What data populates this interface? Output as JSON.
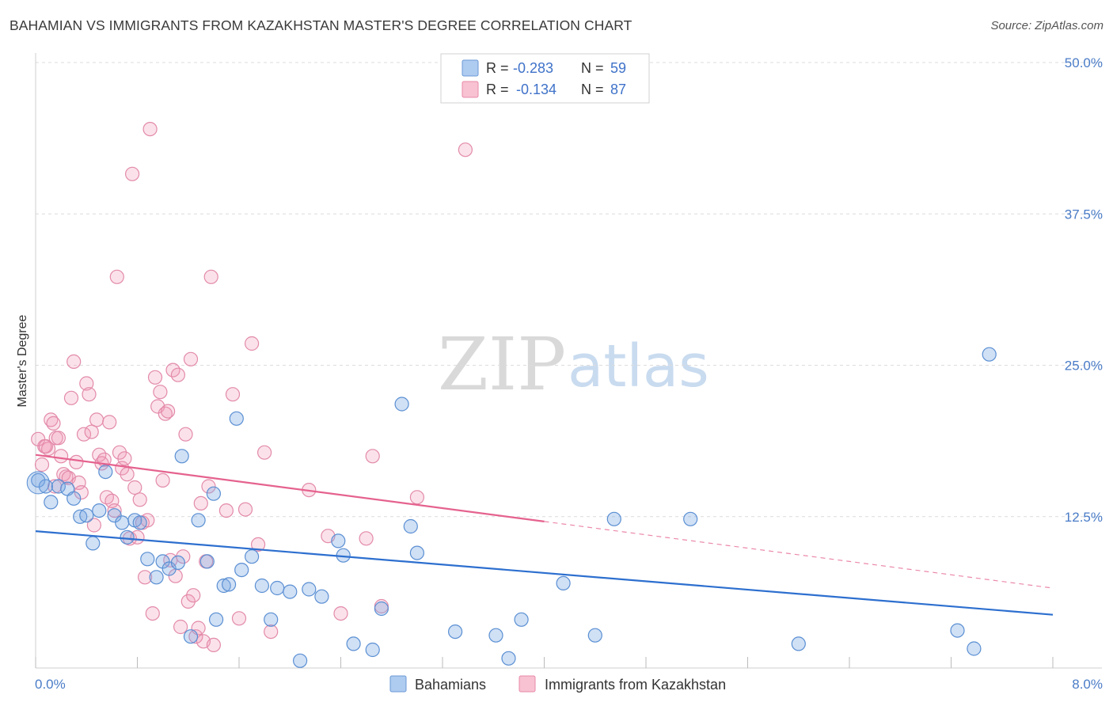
{
  "title": "BAHAMIAN VS IMMIGRANTS FROM KAZAKHSTAN MASTER'S DEGREE CORRELATION CHART",
  "source": "Source: ZipAtlas.com",
  "watermark": {
    "zip": "ZIP",
    "atlas": "atlas"
  },
  "legend": {
    "r_label": "R =",
    "n_label": "N =",
    "entries": [
      {
        "r": "-0.283",
        "n": "59",
        "fill": "#aecbf0",
        "stroke": "#6b9ad6"
      },
      {
        "r": "-0.134",
        "n": "87",
        "fill": "#f8c2d2",
        "stroke": "#e88aa8"
      }
    ]
  },
  "bottom_legend": [
    "Bahamians",
    "Immigrants from Kazakhstan"
  ],
  "colors": {
    "blue_fill": "rgba(120,165,225,0.35)",
    "blue_stroke": "#5a8fd3",
    "blue_line": "#2d6fcf",
    "pink_fill": "rgba(240,150,180,0.28)",
    "pink_stroke": "#e38aaa",
    "pink_line": "#e5628e",
    "tick_text": "#4a7cc7",
    "grid": "#dcdcdc"
  },
  "chart_data": {
    "type": "scatter",
    "title": "BAHAMIAN VS IMMIGRANTS FROM KAZAKHSTAN MASTER'S DEGREE CORRELATION CHART",
    "xlabel": "",
    "ylabel": "Master's Degree",
    "xlim": [
      0.0,
      8.0
    ],
    "ylim": [
      0.0,
      50.0
    ],
    "x_tick_labels": [
      "0.0%",
      "8.0%"
    ],
    "y_ticks": [
      12.5,
      25.0,
      37.5,
      50.0
    ],
    "y_tick_labels": [
      "12.5%",
      "25.0%",
      "37.5%",
      "50.0%"
    ],
    "grid": true,
    "series": [
      {
        "name": "Bahamians",
        "r": -0.283,
        "n": 59,
        "trend": {
          "x": [
            0.0,
            8.0
          ],
          "y": [
            11.3,
            4.4
          ]
        },
        "points": [
          [
            0.02,
            15.5
          ],
          [
            0.08,
            15.0
          ],
          [
            0.12,
            13.7
          ],
          [
            0.18,
            15.0
          ],
          [
            0.25,
            14.8
          ],
          [
            0.3,
            14.0
          ],
          [
            0.35,
            12.5
          ],
          [
            0.4,
            12.6
          ],
          [
            0.45,
            10.3
          ],
          [
            0.5,
            13.0
          ],
          [
            0.55,
            16.2
          ],
          [
            0.62,
            12.6
          ],
          [
            0.68,
            12.0
          ],
          [
            0.72,
            10.8
          ],
          [
            0.78,
            12.2
          ],
          [
            0.82,
            12.0
          ],
          [
            0.88,
            9.0
          ],
          [
            0.95,
            7.5
          ],
          [
            1.0,
            8.8
          ],
          [
            1.05,
            8.2
          ],
          [
            1.12,
            8.7
          ],
          [
            1.15,
            17.5
          ],
          [
            1.22,
            2.6
          ],
          [
            1.28,
            12.2
          ],
          [
            1.35,
            8.8
          ],
          [
            1.4,
            14.4
          ],
          [
            1.42,
            4.0
          ],
          [
            1.48,
            6.8
          ],
          [
            1.52,
            6.9
          ],
          [
            1.58,
            20.6
          ],
          [
            1.62,
            8.1
          ],
          [
            1.7,
            9.2
          ],
          [
            1.78,
            6.8
          ],
          [
            1.85,
            4.0
          ],
          [
            1.9,
            6.6
          ],
          [
            2.0,
            6.3
          ],
          [
            2.08,
            0.6
          ],
          [
            2.15,
            6.5
          ],
          [
            2.25,
            5.9
          ],
          [
            2.38,
            10.5
          ],
          [
            2.42,
            9.3
          ],
          [
            2.5,
            2.0
          ],
          [
            2.65,
            1.5
          ],
          [
            2.72,
            4.9
          ],
          [
            2.88,
            21.8
          ],
          [
            2.95,
            11.7
          ],
          [
            3.0,
            9.5
          ],
          [
            3.3,
            3.0
          ],
          [
            3.62,
            2.7
          ],
          [
            3.72,
            0.8
          ],
          [
            3.82,
            4.0
          ],
          [
            4.15,
            7.0
          ],
          [
            4.4,
            2.7
          ],
          [
            4.55,
            12.3
          ],
          [
            5.15,
            12.3
          ],
          [
            6.0,
            2.0
          ],
          [
            7.25,
            3.1
          ],
          [
            7.38,
            1.6
          ],
          [
            7.5,
            25.9
          ]
        ]
      },
      {
        "name": "Immigrants from Kazakhstan",
        "r": -0.134,
        "n": 87,
        "trend": {
          "x": [
            0.0,
            4.0
          ],
          "y": [
            17.6,
            12.1
          ]
        },
        "trend_dashed": {
          "x": [
            4.0,
            8.0
          ],
          "y": [
            12.1,
            6.6
          ]
        },
        "points": [
          [
            0.02,
            18.9
          ],
          [
            0.05,
            16.8
          ],
          [
            0.07,
            18.3
          ],
          [
            0.1,
            18.1
          ],
          [
            0.12,
            20.5
          ],
          [
            0.14,
            20.2
          ],
          [
            0.16,
            19.0
          ],
          [
            0.18,
            19.0
          ],
          [
            0.2,
            17.5
          ],
          [
            0.22,
            16.0
          ],
          [
            0.24,
            15.8
          ],
          [
            0.26,
            15.7
          ],
          [
            0.28,
            22.3
          ],
          [
            0.3,
            25.3
          ],
          [
            0.32,
            17.0
          ],
          [
            0.34,
            15.3
          ],
          [
            0.36,
            14.5
          ],
          [
            0.38,
            19.3
          ],
          [
            0.4,
            23.5
          ],
          [
            0.42,
            22.6
          ],
          [
            0.44,
            19.5
          ],
          [
            0.46,
            11.8
          ],
          [
            0.48,
            20.5
          ],
          [
            0.5,
            17.6
          ],
          [
            0.52,
            16.9
          ],
          [
            0.54,
            17.2
          ],
          [
            0.56,
            14.1
          ],
          [
            0.58,
            20.3
          ],
          [
            0.6,
            13.8
          ],
          [
            0.62,
            13.0
          ],
          [
            0.64,
            32.3
          ],
          [
            0.66,
            17.8
          ],
          [
            0.68,
            16.5
          ],
          [
            0.7,
            17.3
          ],
          [
            0.72,
            16.0
          ],
          [
            0.74,
            10.7
          ],
          [
            0.76,
            40.8
          ],
          [
            0.78,
            14.9
          ],
          [
            0.8,
            10.8
          ],
          [
            0.82,
            13.9
          ],
          [
            0.84,
            12.0
          ],
          [
            0.86,
            7.5
          ],
          [
            0.88,
            12.2
          ],
          [
            0.9,
            44.5
          ],
          [
            0.92,
            4.5
          ],
          [
            0.94,
            24.0
          ],
          [
            0.96,
            21.6
          ],
          [
            0.98,
            22.8
          ],
          [
            1.0,
            15.5
          ],
          [
            1.02,
            21.0
          ],
          [
            1.04,
            21.2
          ],
          [
            1.06,
            8.9
          ],
          [
            1.08,
            24.6
          ],
          [
            1.1,
            7.6
          ],
          [
            1.12,
            24.2
          ],
          [
            1.14,
            3.4
          ],
          [
            1.16,
            9.2
          ],
          [
            1.18,
            19.3
          ],
          [
            1.2,
            5.5
          ],
          [
            1.22,
            25.5
          ],
          [
            1.24,
            6.0
          ],
          [
            1.26,
            2.6
          ],
          [
            1.28,
            3.3
          ],
          [
            1.3,
            13.6
          ],
          [
            1.32,
            2.2
          ],
          [
            1.34,
            8.8
          ],
          [
            1.36,
            15.0
          ],
          [
            1.38,
            32.3
          ],
          [
            1.4,
            1.9
          ],
          [
            1.5,
            13.0
          ],
          [
            1.55,
            22.6
          ],
          [
            1.6,
            4.1
          ],
          [
            1.65,
            13.1
          ],
          [
            1.7,
            26.8
          ],
          [
            1.75,
            10.2
          ],
          [
            1.8,
            17.8
          ],
          [
            1.85,
            3.0
          ],
          [
            2.15,
            14.7
          ],
          [
            2.3,
            10.9
          ],
          [
            2.4,
            4.5
          ],
          [
            2.6,
            10.7
          ],
          [
            2.65,
            17.5
          ],
          [
            2.72,
            5.1
          ],
          [
            3.0,
            14.1
          ],
          [
            3.38,
            42.8
          ],
          [
            0.08,
            18.3
          ],
          [
            0.15,
            15.0
          ]
        ]
      }
    ]
  }
}
